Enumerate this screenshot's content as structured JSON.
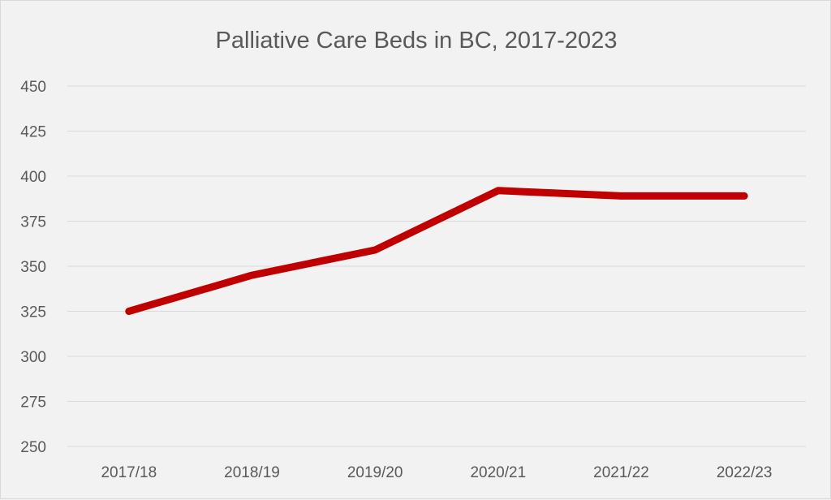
{
  "chart_data": {
    "type": "line",
    "title": "Palliative Care Beds in BC, 2017-2023",
    "xlabel": "",
    "ylabel": "",
    "categories": [
      "2017/18",
      "2018/19",
      "2019/20",
      "2020/21",
      "2021/22",
      "2022/23"
    ],
    "series": [
      {
        "values": [
          325,
          345,
          359,
          392,
          389,
          389
        ],
        "color": "#c00000"
      }
    ],
    "ylim": [
      250,
      450
    ],
    "yticks": [
      "250",
      "275",
      "300",
      "325",
      "350",
      "375",
      "400",
      "425",
      "450"
    ],
    "grid": true,
    "legend": "none"
  },
  "colors": {
    "background": "#f2f2f2",
    "gridline": "#d9d9d9",
    "text": "#595959"
  }
}
